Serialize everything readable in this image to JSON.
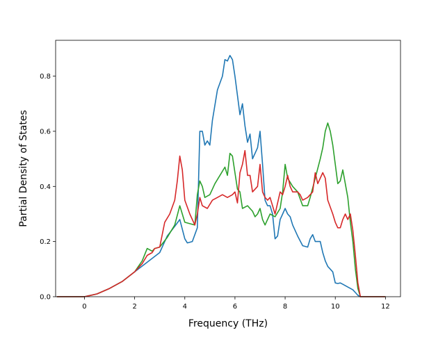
{
  "chart_data": {
    "type": "line",
    "title": "",
    "xlabel": "Frequency (THz)",
    "ylabel": "Partial Density of States",
    "xlim": [
      -1.15,
      12.6
    ],
    "ylim": [
      0,
      0.93
    ],
    "xticks": [
      0,
      2,
      4,
      6,
      8,
      10,
      12
    ],
    "yticks": [
      0.0,
      0.2,
      0.4,
      0.6,
      0.8
    ],
    "xtick_labels": [
      "0",
      "2",
      "4",
      "6",
      "8",
      "10",
      "12"
    ],
    "ytick_labels": [
      "0.0",
      "0.2",
      "0.4",
      "0.6",
      "0.8"
    ],
    "grid": false,
    "legend": "none",
    "series": [
      {
        "color": "#1f77b4",
        "x": [
          -1.1,
          0,
          0.5,
          1,
          1.5,
          2,
          2.5,
          3,
          3.3,
          3.6,
          3.8,
          4.0,
          4.1,
          4.3,
          4.5,
          4.6,
          4.7,
          4.8,
          4.9,
          5.0,
          5.1,
          5.3,
          5.5,
          5.6,
          5.7,
          5.8,
          5.9,
          6.0,
          6.1,
          6.2,
          6.3,
          6.4,
          6.5,
          6.6,
          6.7,
          6.8,
          6.9,
          7.0,
          7.1,
          7.2,
          7.3,
          7.4,
          7.5,
          7.6,
          7.7,
          7.8,
          7.9,
          8.0,
          8.1,
          8.2,
          8.3,
          8.5,
          8.7,
          8.9,
          9.0,
          9.1,
          9.2,
          9.3,
          9.4,
          9.5,
          9.6,
          9.7,
          9.8,
          9.9,
          10.0,
          10.1,
          10.2,
          10.3,
          10.4,
          10.5,
          10.6,
          10.7,
          10.8,
          10.9,
          11.0,
          12.0
        ],
        "y": [
          0,
          0,
          0.01,
          0.03,
          0.055,
          0.09,
          0.125,
          0.16,
          0.22,
          0.255,
          0.28,
          0.21,
          0.195,
          0.2,
          0.25,
          0.6,
          0.6,
          0.55,
          0.565,
          0.55,
          0.64,
          0.75,
          0.8,
          0.86,
          0.855,
          0.875,
          0.86,
          0.8,
          0.73,
          0.66,
          0.7,
          0.62,
          0.56,
          0.59,
          0.5,
          0.52,
          0.54,
          0.6,
          0.48,
          0.35,
          0.33,
          0.33,
          0.3,
          0.21,
          0.22,
          0.28,
          0.3,
          0.32,
          0.3,
          0.29,
          0.26,
          0.22,
          0.185,
          0.18,
          0.21,
          0.225,
          0.2,
          0.2,
          0.2,
          0.16,
          0.13,
          0.11,
          0.1,
          0.09,
          0.05,
          0.048,
          0.05,
          0.045,
          0.04,
          0.035,
          0.03,
          0.025,
          0.015,
          0.005,
          0,
          0
        ]
      },
      {
        "color": "#2ca02c",
        "x": [
          -1.1,
          0,
          0.5,
          1,
          1.5,
          2,
          2.3,
          2.5,
          2.7,
          2.8,
          3.0,
          3.3,
          3.6,
          3.8,
          3.9,
          4.0,
          4.2,
          4.4,
          4.5,
          4.6,
          4.7,
          4.8,
          5.0,
          5.2,
          5.4,
          5.6,
          5.7,
          5.8,
          5.9,
          6.0,
          6.1,
          6.2,
          6.3,
          6.5,
          6.7,
          6.8,
          6.9,
          7.0,
          7.1,
          7.2,
          7.4,
          7.6,
          7.8,
          7.9,
          8.0,
          8.1,
          8.3,
          8.5,
          8.7,
          8.9,
          9.0,
          9.2,
          9.4,
          9.5,
          9.6,
          9.7,
          9.8,
          9.9,
          10.0,
          10.1,
          10.2,
          10.3,
          10.4,
          10.5,
          10.6,
          10.7,
          10.8,
          10.9,
          11.0,
          12.0
        ],
        "y": [
          0,
          0,
          0.01,
          0.03,
          0.055,
          0.09,
          0.13,
          0.175,
          0.165,
          0.175,
          0.18,
          0.215,
          0.26,
          0.33,
          0.3,
          0.27,
          0.265,
          0.26,
          0.37,
          0.42,
          0.4,
          0.36,
          0.37,
          0.41,
          0.44,
          0.47,
          0.44,
          0.52,
          0.51,
          0.45,
          0.39,
          0.38,
          0.32,
          0.33,
          0.31,
          0.29,
          0.3,
          0.32,
          0.28,
          0.26,
          0.3,
          0.29,
          0.32,
          0.38,
          0.48,
          0.43,
          0.4,
          0.38,
          0.33,
          0.33,
          0.36,
          0.43,
          0.5,
          0.54,
          0.6,
          0.63,
          0.6,
          0.55,
          0.48,
          0.41,
          0.42,
          0.46,
          0.41,
          0.36,
          0.27,
          0.2,
          0.1,
          0.03,
          0,
          0
        ]
      },
      {
        "color": "#d62728",
        "x": [
          -1.1,
          0,
          0.5,
          1,
          1.5,
          2,
          2.3,
          2.5,
          2.7,
          2.8,
          3.0,
          3.2,
          3.4,
          3.6,
          3.7,
          3.8,
          3.9,
          4.0,
          4.2,
          4.4,
          4.5,
          4.6,
          4.7,
          4.9,
          5.1,
          5.3,
          5.5,
          5.7,
          5.9,
          6.0,
          6.1,
          6.2,
          6.3,
          6.4,
          6.5,
          6.6,
          6.7,
          6.9,
          7.0,
          7.1,
          7.2,
          7.3,
          7.4,
          7.6,
          7.8,
          7.9,
          8.0,
          8.1,
          8.2,
          8.3,
          8.5,
          8.6,
          8.7,
          8.9,
          9.1,
          9.2,
          9.3,
          9.5,
          9.6,
          9.7,
          9.9,
          10.0,
          10.1,
          10.2,
          10.3,
          10.4,
          10.5,
          10.6,
          10.7,
          10.8,
          10.9,
          11.0,
          12.0
        ],
        "y": [
          0,
          0,
          0.01,
          0.03,
          0.055,
          0.09,
          0.12,
          0.15,
          0.16,
          0.175,
          0.18,
          0.27,
          0.3,
          0.35,
          0.42,
          0.51,
          0.46,
          0.35,
          0.3,
          0.26,
          0.3,
          0.36,
          0.33,
          0.32,
          0.35,
          0.36,
          0.37,
          0.36,
          0.37,
          0.38,
          0.34,
          0.45,
          0.48,
          0.53,
          0.44,
          0.44,
          0.38,
          0.4,
          0.48,
          0.38,
          0.36,
          0.35,
          0.36,
          0.3,
          0.38,
          0.37,
          0.4,
          0.44,
          0.4,
          0.38,
          0.38,
          0.37,
          0.35,
          0.36,
          0.38,
          0.45,
          0.41,
          0.45,
          0.43,
          0.35,
          0.3,
          0.27,
          0.25,
          0.25,
          0.28,
          0.3,
          0.28,
          0.3,
          0.24,
          0.15,
          0.05,
          0,
          0
        ]
      }
    ]
  }
}
